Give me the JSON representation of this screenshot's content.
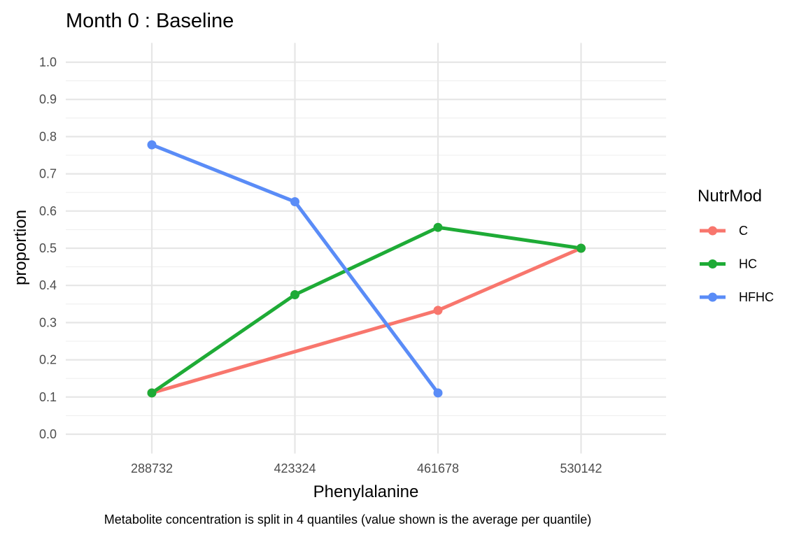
{
  "chart_data": {
    "type": "line",
    "title": "Month 0 : Baseline",
    "xlabel": "Phenylalanine",
    "ylabel": "proportion",
    "caption": "Metabolite concentration is split in 4 quantiles (value shown is the average per quantile)",
    "categories": [
      "288732",
      "423324",
      "461678",
      "530142"
    ],
    "ylim": [
      0,
      1
    ],
    "yticks": [
      "0.0",
      "0.1",
      "0.2",
      "0.3",
      "0.4",
      "0.5",
      "0.6",
      "0.7",
      "0.8",
      "0.9",
      "1.0"
    ],
    "grid": true,
    "legend": {
      "title": "NutrMod",
      "placement": "right"
    },
    "series": [
      {
        "name": "C",
        "color": "#f8766d",
        "values": [
          0.111,
          null,
          0.333,
          0.5
        ]
      },
      {
        "name": "HC",
        "color": "#1eab36",
        "values": [
          0.111,
          0.375,
          0.556,
          0.5
        ]
      },
      {
        "name": "HFHC",
        "color": "#5a8cf7",
        "values": [
          0.778,
          0.625,
          0.111,
          null
        ]
      }
    ]
  }
}
